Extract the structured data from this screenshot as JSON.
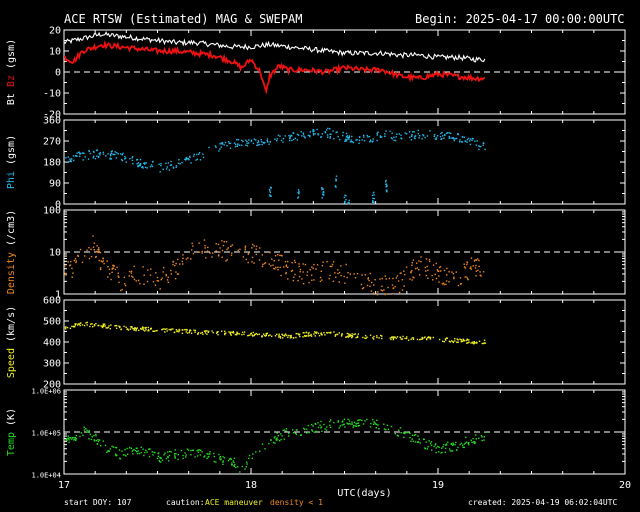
{
  "header": {
    "title": "ACE RTSW (Estimated) MAG & SWEPAM",
    "begin": "Begin: 2025-04-17 00:00:00UTC"
  },
  "footer": {
    "start_doy": "start DOY: 107",
    "caution_label": "caution:",
    "caution_maneuver": "ACE maneuver",
    "caution_density": "density < 1",
    "created": "created: 2025-04-19 06:02:04UTC"
  },
  "colors": {
    "background": "#000000",
    "frame": "#ffffff",
    "bt": "#ffffff",
    "bz": "#ee1111",
    "phi": "#22bbee",
    "density": "#ee8822",
    "speed": "#eeee22",
    "temp": "#22dd22",
    "maneuver": "#eeee22",
    "density_caution": "#ee8822"
  },
  "chart_data": {
    "type": "scatter",
    "x_unit": "UTC(days)",
    "xlabel": "UTC(days)",
    "xlim": [
      17,
      20
    ],
    "x_ticks": [
      17,
      18,
      19,
      20
    ],
    "data_end_x": 19.25,
    "panels": [
      {
        "id": "mag",
        "ylabel_parts": [
          {
            "text": "Bt",
            "color": "#ffffff"
          },
          {
            "text": "Bz",
            "color": "#ee1111"
          },
          {
            "text": "(gsm)",
            "color": "#ffffff"
          }
        ],
        "ylim": [
          -20,
          20
        ],
        "scale": "linear",
        "ticks": [
          20,
          10,
          0,
          -10,
          -20
        ],
        "tick_labels": [
          "20",
          "10",
          "0",
          "-10",
          "-20"
        ],
        "dashed_at": [
          0
        ],
        "series": [
          {
            "name": "Bt",
            "color": "#ffffff",
            "style": "line",
            "x": [
              17.0,
              17.1,
              17.2,
              17.3,
              17.4,
              17.5,
              17.6,
              17.7,
              17.8,
              17.9,
              18.0,
              18.1,
              18.2,
              18.3,
              18.4,
              18.5,
              18.6,
              18.7,
              18.8,
              18.9,
              19.0,
              19.1,
              19.2,
              19.25
            ],
            "y": [
              14,
              16,
              18,
              17,
              16,
              15,
              14,
              14,
              13,
              12,
              12,
              13,
              12,
              11,
              10,
              9,
              9,
              9,
              8,
              8,
              7,
              7,
              6,
              6
            ]
          },
          {
            "name": "Bz",
            "color": "#ee1111",
            "style": "line",
            "x": [
              17.0,
              17.05,
              17.1,
              17.2,
              17.3,
              17.4,
              17.5,
              17.6,
              17.7,
              17.8,
              17.9,
              17.95,
              18.0,
              18.05,
              18.08,
              18.1,
              18.15,
              18.2,
              18.3,
              18.4,
              18.5,
              18.6,
              18.7,
              18.8,
              18.9,
              19.0,
              19.1,
              19.2,
              19.25
            ],
            "y": [
              7,
              5,
              10,
              13,
              12,
              11,
              10,
              10,
              9,
              8,
              5,
              2,
              6,
              0,
              -10,
              -2,
              3,
              1,
              1,
              0,
              2,
              1,
              1,
              -2,
              -3,
              -1,
              -2,
              -3,
              -3
            ]
          }
        ]
      },
      {
        "id": "phi",
        "ylabel_parts": [
          {
            "text": "Phi",
            "color": "#22bbee"
          },
          {
            "text": "(gsm)",
            "color": "#ffffff"
          }
        ],
        "ylim": [
          0,
          360
        ],
        "scale": "linear",
        "ticks": [
          360,
          270,
          180,
          90,
          0
        ],
        "tick_labels": [
          "360",
          "270",
          "180",
          "90",
          "0"
        ],
        "dashed_at": [],
        "series": [
          {
            "name": "Phi",
            "color": "#22bbee",
            "style": "dots",
            "x": [
              17.0,
              17.1,
              17.2,
              17.3,
              17.4,
              17.5,
              17.6,
              17.7,
              17.8,
              17.9,
              18.0,
              18.1,
              18.2,
              18.3,
              18.4,
              18.5,
              18.6,
              18.7,
              18.8,
              18.9,
              19.0,
              19.1,
              19.2,
              19.25
            ],
            "y": [
              200,
              210,
              220,
              210,
              180,
              160,
              170,
              200,
              240,
              260,
              270,
              280,
              290,
              300,
              310,
              290,
              280,
              300,
              290,
              300,
              300,
              290,
              260,
              250
            ],
            "spread": 20
          },
          {
            "name": "Phi excursions",
            "color": "#22bbee",
            "style": "dots",
            "x": [
              18.1,
              18.25,
              18.38,
              18.45,
              18.5,
              18.52,
              18.65,
              18.72
            ],
            "y": [
              60,
              40,
              50,
              100,
              20,
              10,
              30,
              80
            ],
            "spread": 25
          }
        ]
      },
      {
        "id": "density",
        "ylabel_parts": [
          {
            "text": "Density",
            "color": "#ee8822"
          },
          {
            "text": "(/cm3)",
            "color": "#ffffff"
          }
        ],
        "ylim": [
          1,
          100
        ],
        "scale": "log",
        "ticks": [
          100,
          10,
          1
        ],
        "tick_labels": [
          "100",
          "10",
          "1"
        ],
        "dashed_at": [
          10
        ],
        "series": [
          {
            "name": "Density",
            "color": "#ee8822",
            "style": "dots",
            "x": [
              17.0,
              17.05,
              17.1,
              17.15,
              17.2,
              17.3,
              17.4,
              17.5,
              17.6,
              17.7,
              17.8,
              17.9,
              18.0,
              18.1,
              18.2,
              18.3,
              18.4,
              18.5,
              18.6,
              18.7,
              18.8,
              18.9,
              19.0,
              19.1,
              19.2,
              19.25
            ],
            "y": [
              5,
              4,
              9,
              15,
              5,
              2,
              3,
              2,
              4,
              14,
              12,
              10,
              9,
              6,
              4,
              3,
              4,
              3,
              2,
              1.5,
              2,
              5,
              3,
              2,
              5,
              4
            ],
            "spread": 0.25
          }
        ]
      },
      {
        "id": "speed",
        "ylabel_parts": [
          {
            "text": "Speed",
            "color": "#eeee22"
          },
          {
            "text": "(km/s)",
            "color": "#ffffff"
          }
        ],
        "ylim": [
          200,
          600
        ],
        "scale": "linear",
        "ticks": [
          600,
          500,
          400,
          300,
          200
        ],
        "tick_labels": [
          "600",
          "500",
          "400",
          "300",
          "200"
        ],
        "dashed_at": [],
        "series": [
          {
            "name": "Speed",
            "color": "#eeee22",
            "style": "dots",
            "x": [
              17.0,
              17.1,
              17.2,
              17.3,
              17.4,
              17.5,
              17.6,
              17.7,
              17.8,
              17.9,
              18.0,
              18.1,
              18.2,
              18.3,
              18.4,
              18.5,
              18.6,
              18.7,
              18.8,
              18.9,
              19.0,
              19.1,
              19.2,
              19.25
            ],
            "y": [
              470,
              490,
              480,
              470,
              465,
              460,
              455,
              450,
              448,
              445,
              440,
              435,
              430,
              440,
              445,
              435,
              430,
              425,
              420,
              420,
              415,
              410,
              405,
              405
            ],
            "spread": 10
          }
        ]
      },
      {
        "id": "temp",
        "ylabel_parts": [
          {
            "text": "Temp",
            "color": "#22dd22"
          },
          {
            "text": "(K)",
            "color": "#ffffff"
          }
        ],
        "ylim": [
          10000,
          1000000
        ],
        "scale": "log",
        "ticks": [
          1000000,
          100000,
          10000
        ],
        "tick_labels": [
          "1.0E+06",
          "1.0E+05",
          "1.0E+04"
        ],
        "dashed_at": [
          100000
        ],
        "series": [
          {
            "name": "Temp",
            "color": "#22dd22",
            "style": "dots",
            "x": [
              17.0,
              17.05,
              17.1,
              17.2,
              17.3,
              17.4,
              17.5,
              17.6,
              17.7,
              17.8,
              17.9,
              17.95,
              18.0,
              18.1,
              18.2,
              18.3,
              18.4,
              18.5,
              18.6,
              18.7,
              18.8,
              18.9,
              19.0,
              19.1,
              19.2,
              19.25
            ],
            "y": [
              60000,
              80000,
              110000,
              50000,
              30000,
              40000,
              25000,
              30000,
              35000,
              25000,
              20000,
              12000,
              30000,
              60000,
              100000,
              120000,
              150000,
              180000,
              160000,
              150000,
              100000,
              60000,
              40000,
              50000,
              70000,
              80000
            ],
            "spread": 0.12
          }
        ]
      }
    ]
  }
}
